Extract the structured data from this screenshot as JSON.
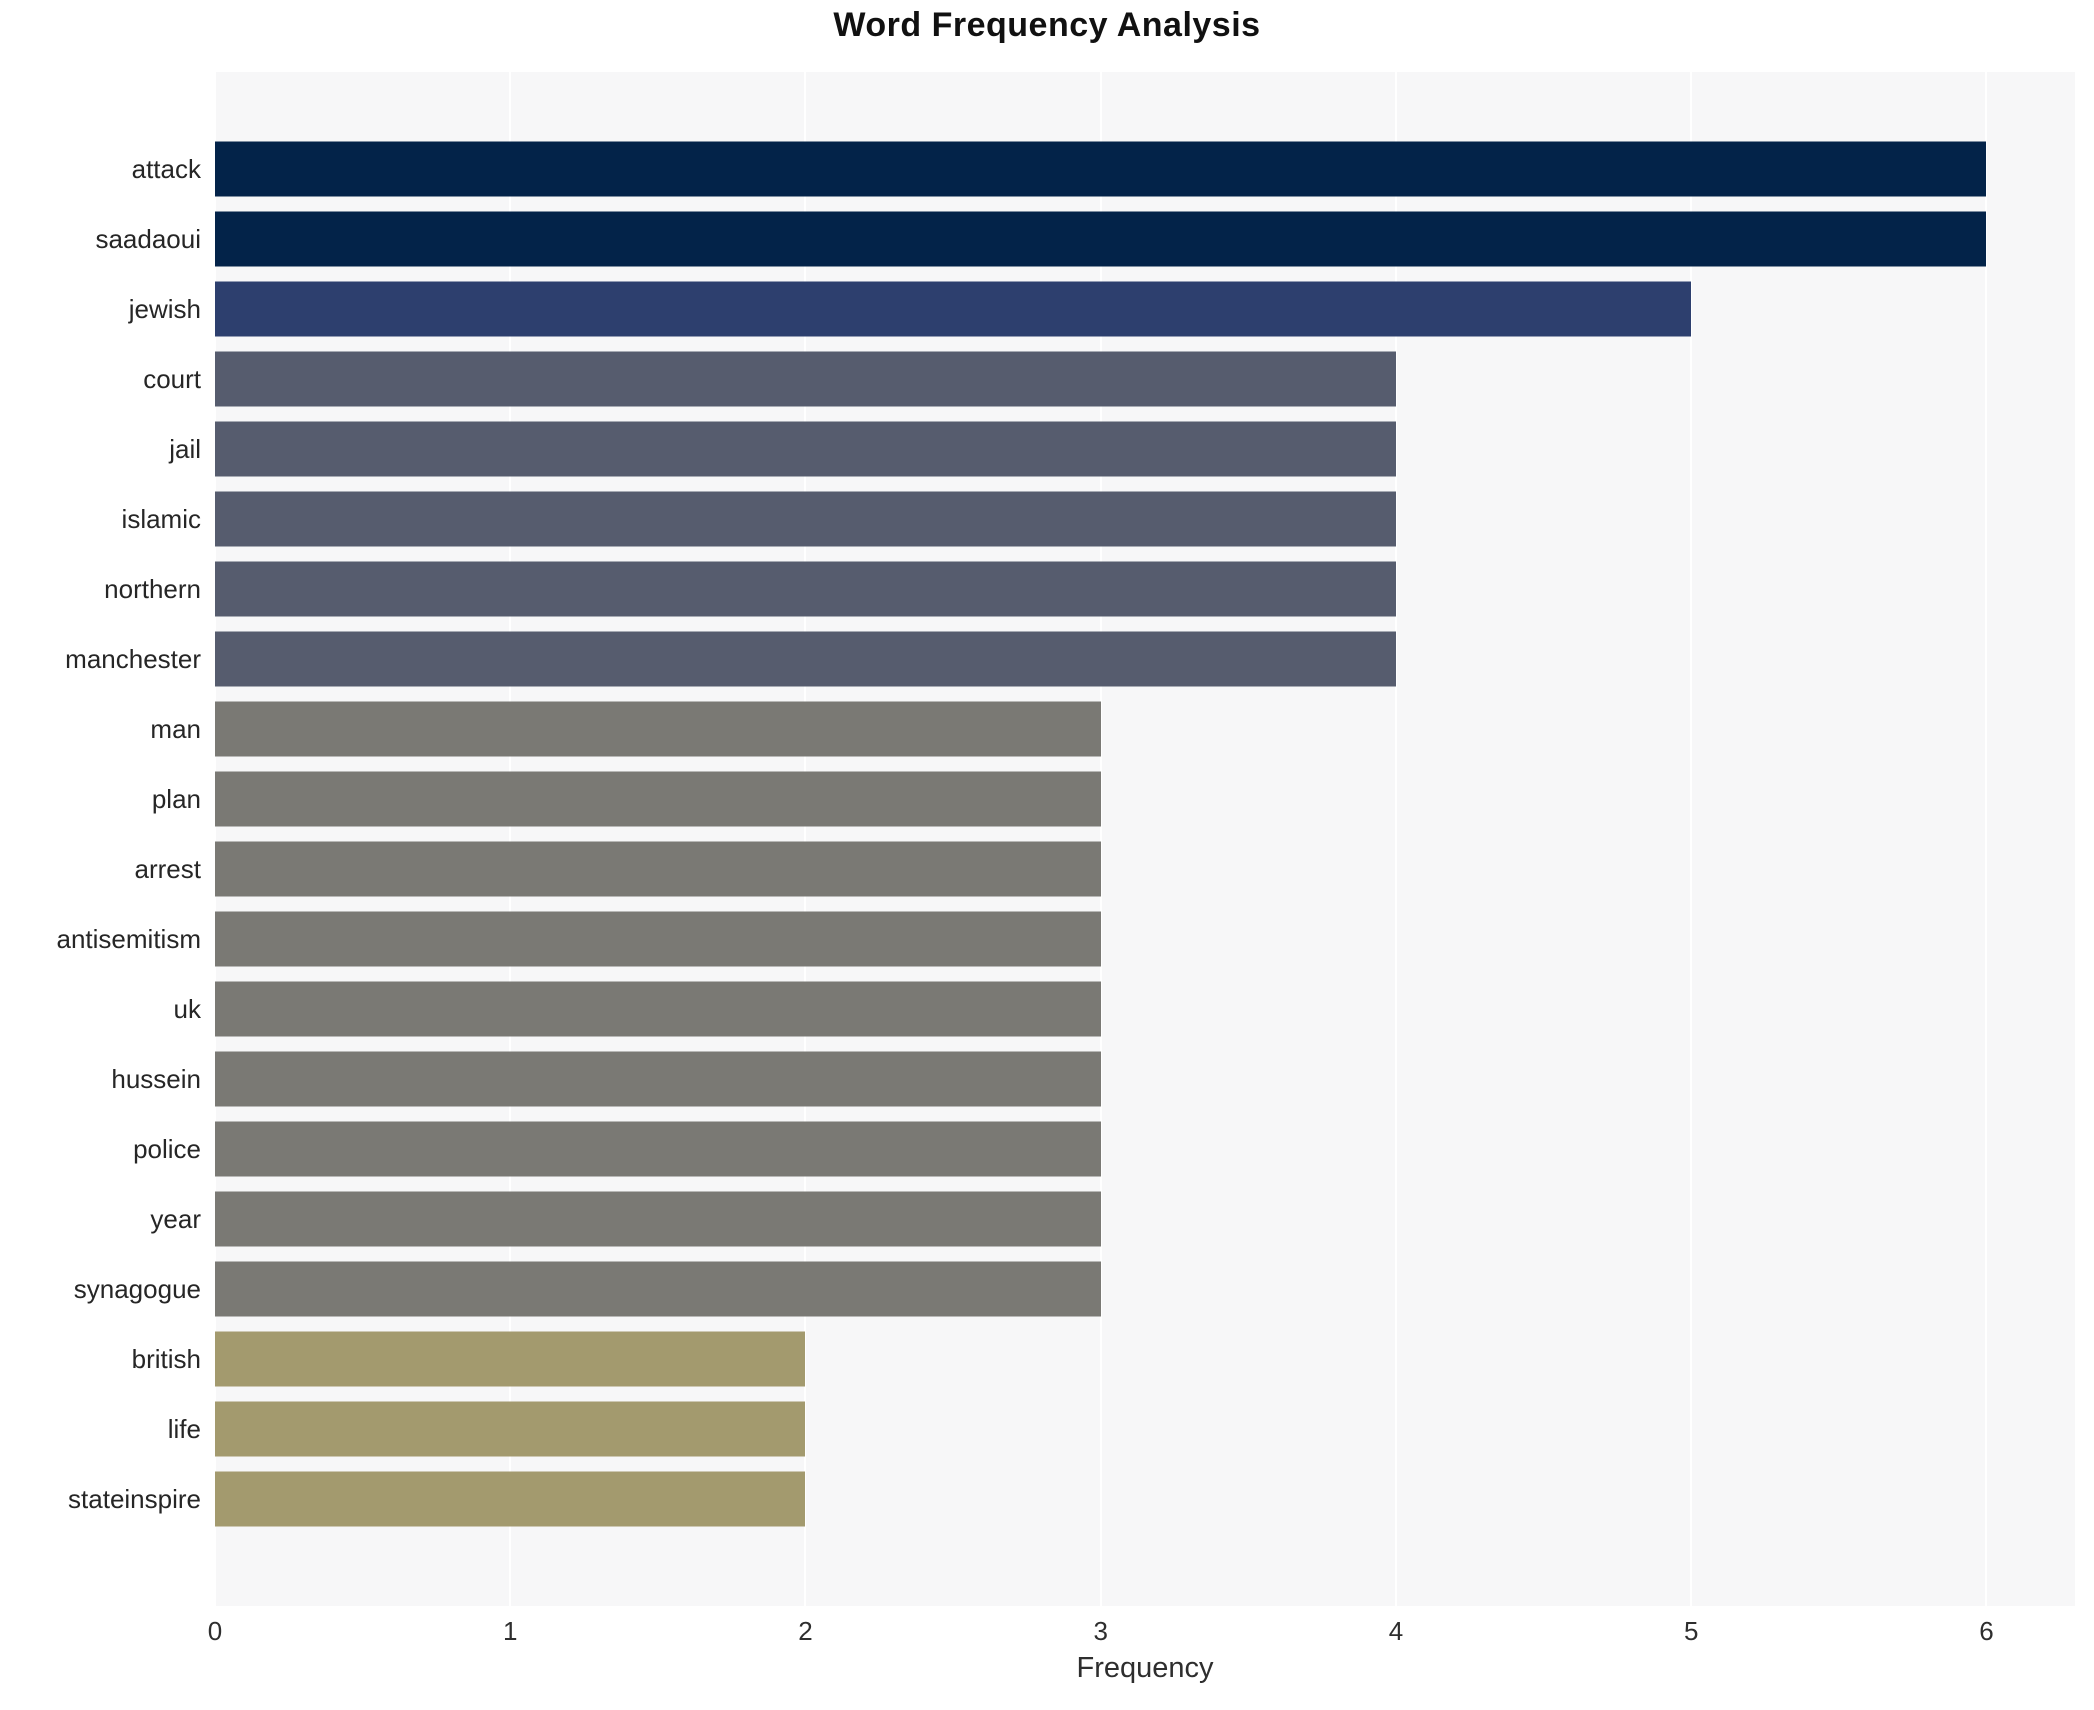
{
  "chart_data": {
    "type": "bar",
    "orientation": "horizontal",
    "title": "Word Frequency Analysis",
    "xlabel": "Frequency",
    "ylabel": "",
    "categories": [
      "attack",
      "saadaoui",
      "jewish",
      "court",
      "jail",
      "islamic",
      "northern",
      "manchester",
      "man",
      "plan",
      "arrest",
      "antisemitism",
      "uk",
      "hussein",
      "police",
      "year",
      "synagogue",
      "british",
      "life",
      "stateinspire"
    ],
    "values": [
      6,
      6,
      5,
      4,
      4,
      4,
      4,
      4,
      3,
      3,
      3,
      3,
      3,
      3,
      3,
      3,
      3,
      2,
      2,
      2
    ],
    "xlim": [
      0,
      6.3
    ],
    "xticks": [
      0,
      1,
      2,
      3,
      4,
      5,
      6
    ],
    "grid": true,
    "legend_position": "none",
    "color_by_value": {
      "6": "#032349",
      "5": "#2d3f6e",
      "4": "#565c6e",
      "3": "#7a7974",
      "2": "#a39a6e"
    },
    "colors": {
      "plot_background": "#f7f7f8",
      "figure_background": "#ffffff",
      "gridline": "#ffffff",
      "title_text": "#111111",
      "tick_text": "#2e2e2e",
      "category_text": "#262626"
    }
  }
}
